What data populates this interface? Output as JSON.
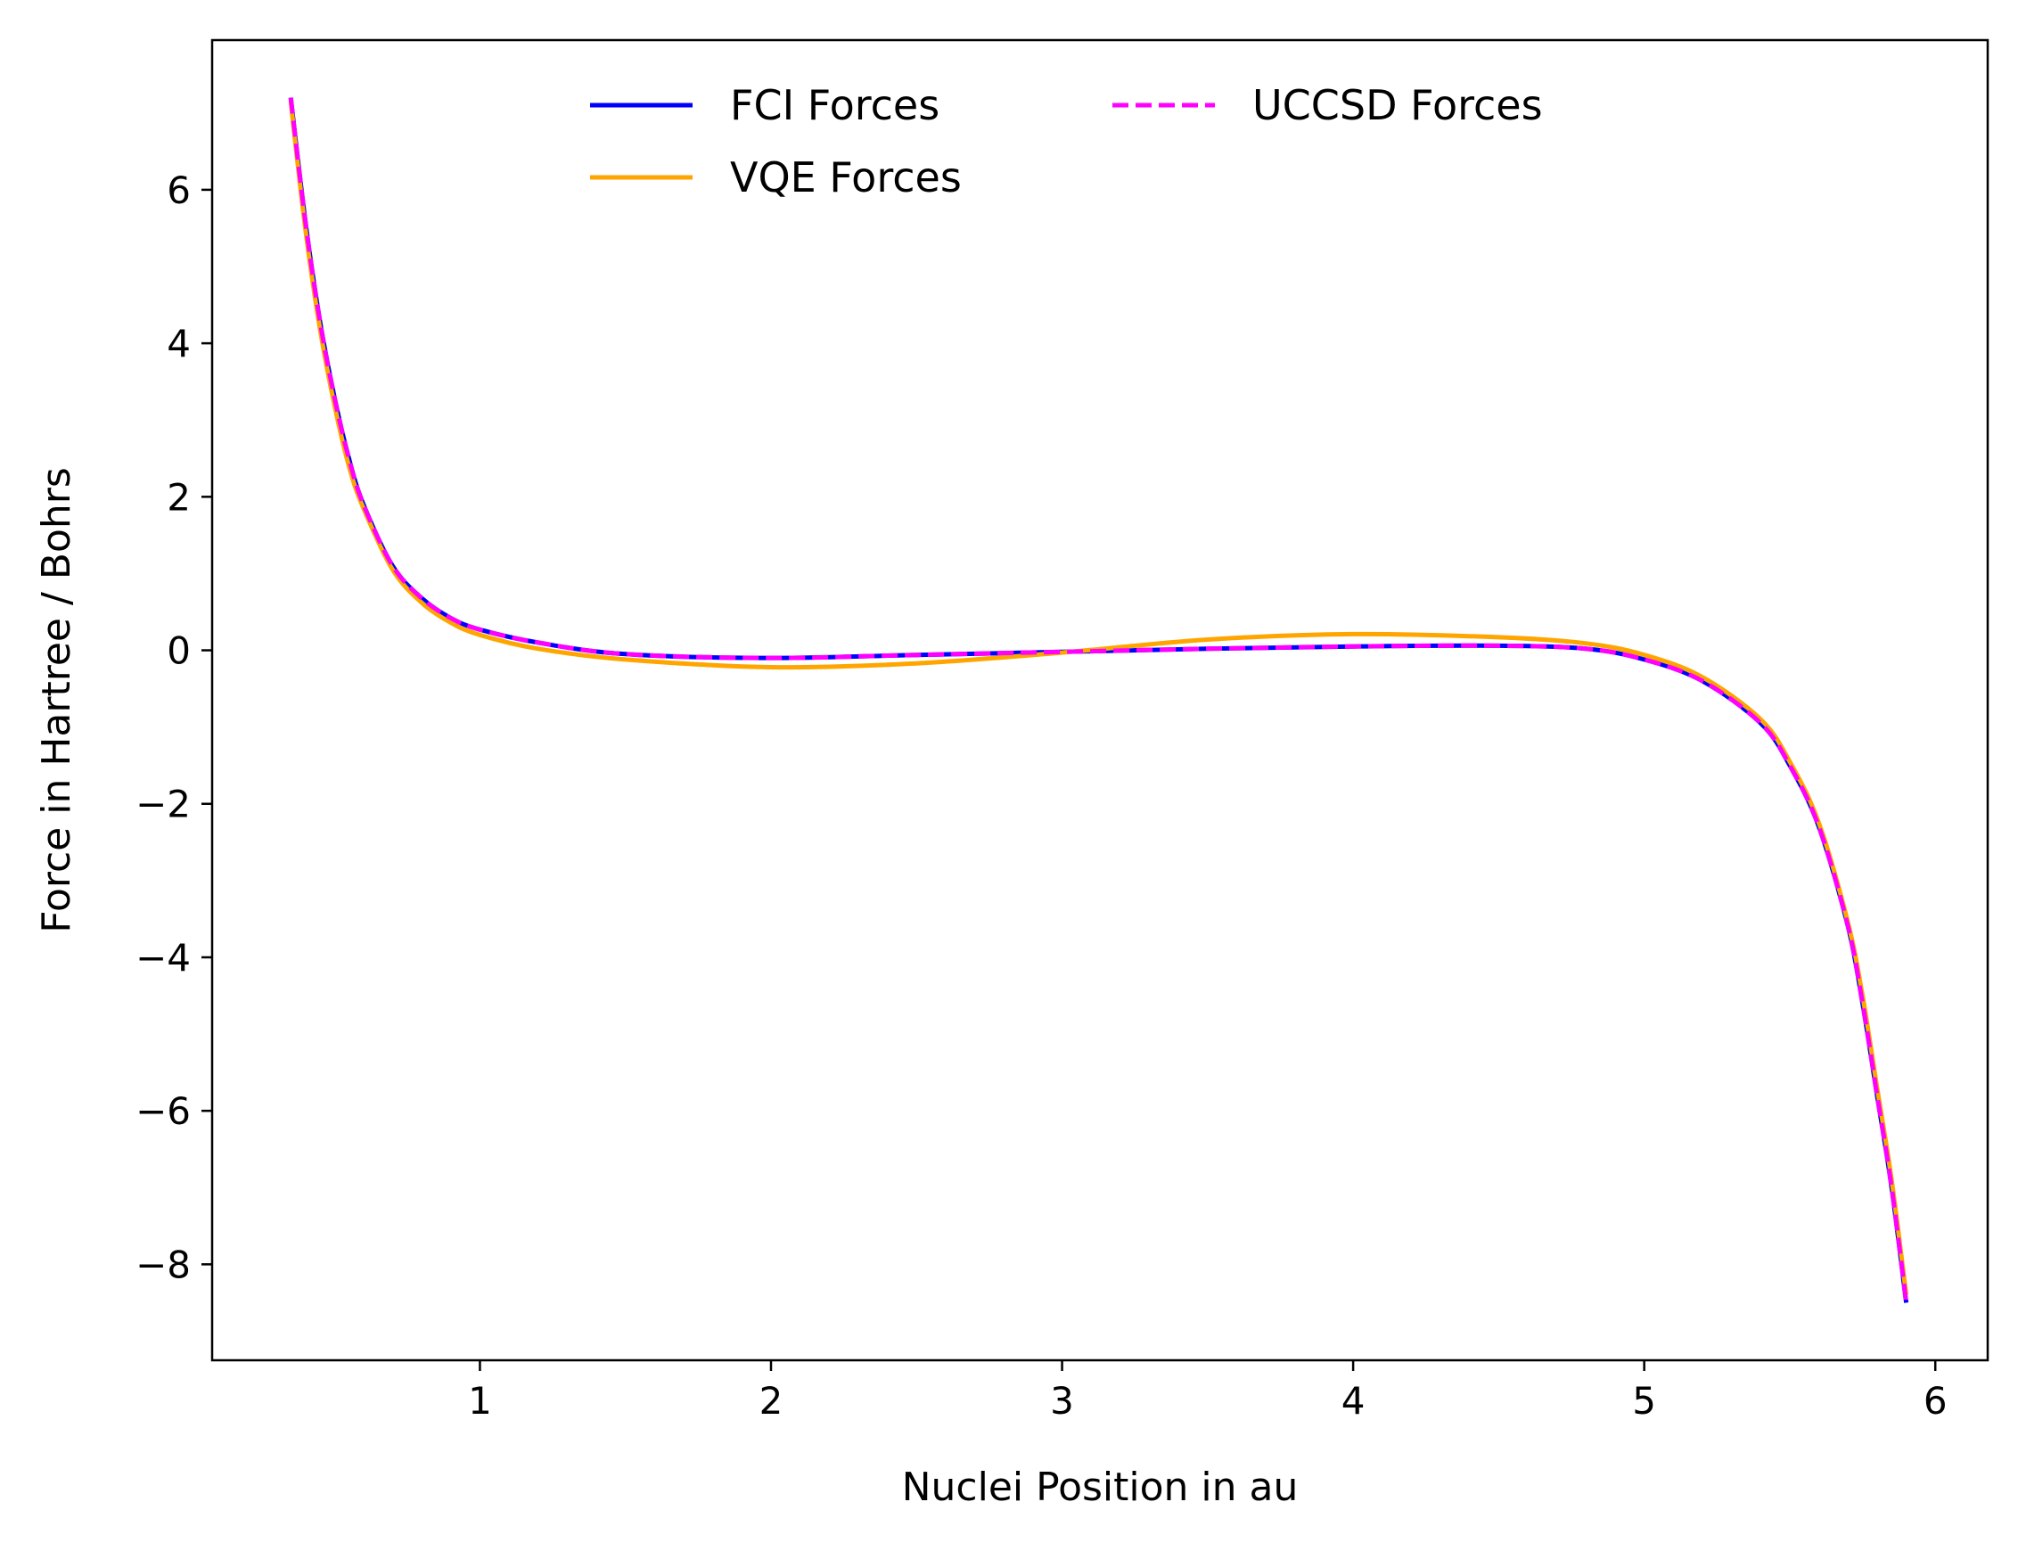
{
  "chart_data": {
    "type": "line",
    "title": "",
    "xlabel": "Nuclei Position in au",
    "ylabel": "Force in Hartree / Bohrs",
    "xlim": [
      0.08,
      6.18
    ],
    "ylim": [
      -9.25,
      7.95
    ],
    "xticks": [
      1,
      2,
      3,
      4,
      5,
      6
    ],
    "xtick_labels": [
      "1",
      "2",
      "3",
      "4",
      "5",
      "6"
    ],
    "yticks": [
      -8,
      -6,
      -4,
      -2,
      0,
      2,
      4,
      6
    ],
    "ytick_labels": [
      "−8",
      "−6",
      "−4",
      "−2",
      "0",
      "2",
      "4",
      "6"
    ],
    "grid": false,
    "legend_position": "top-center",
    "series": [
      {
        "name": "FCI Forces",
        "color": "#0000ff",
        "style": "solid",
        "x": [
          0.35,
          0.4,
          0.45,
          0.5,
          0.55,
          0.6,
          0.7,
          0.8,
          0.9,
          1.0,
          1.2,
          1.5,
          2.0,
          2.5,
          3.0,
          3.5,
          4.0,
          4.5,
          4.8,
          5.0,
          5.2,
          5.4,
          5.5,
          5.6,
          5.7,
          5.75,
          5.8,
          5.85,
          5.9
        ],
        "values": [
          7.2,
          5.6,
          4.3,
          3.3,
          2.5,
          1.9,
          1.1,
          0.68,
          0.42,
          0.27,
          0.1,
          -0.05,
          -0.1,
          -0.06,
          -0.02,
          0.02,
          0.05,
          0.06,
          0.02,
          -0.12,
          -0.4,
          -0.95,
          -1.5,
          -2.3,
          -3.6,
          -4.6,
          -5.8,
          -7.0,
          -8.5
        ]
      },
      {
        "name": "VQE Forces",
        "color": "#ffa500",
        "style": "solid",
        "x": [
          0.35,
          0.4,
          0.45,
          0.5,
          0.55,
          0.6,
          0.7,
          0.8,
          0.9,
          1.0,
          1.2,
          1.5,
          2.0,
          2.5,
          3.0,
          3.5,
          4.0,
          4.5,
          4.8,
          5.0,
          5.2,
          5.4,
          5.5,
          5.6,
          5.7,
          5.75,
          5.8,
          5.85,
          5.9
        ],
        "values": [
          7.15,
          5.5,
          4.2,
          3.2,
          2.4,
          1.85,
          1.05,
          0.62,
          0.36,
          0.2,
          0.02,
          -0.12,
          -0.22,
          -0.17,
          -0.03,
          0.14,
          0.21,
          0.17,
          0.09,
          -0.06,
          -0.35,
          -0.9,
          -1.45,
          -2.25,
          -3.55,
          -4.5,
          -5.7,
          -6.9,
          -8.4
        ]
      },
      {
        "name": "UCCSD Forces",
        "color": "#ff00ff",
        "style": "dashed",
        "x": [
          0.35,
          0.4,
          0.45,
          0.5,
          0.55,
          0.6,
          0.7,
          0.8,
          0.9,
          1.0,
          1.2,
          1.5,
          2.0,
          2.5,
          3.0,
          3.5,
          4.0,
          4.5,
          4.8,
          5.0,
          5.2,
          5.4,
          5.5,
          5.6,
          5.7,
          5.75,
          5.8,
          5.85,
          5.9
        ],
        "values": [
          7.2,
          5.6,
          4.3,
          3.3,
          2.5,
          1.9,
          1.1,
          0.68,
          0.42,
          0.27,
          0.1,
          -0.05,
          -0.1,
          -0.06,
          -0.02,
          0.02,
          0.05,
          0.06,
          0.02,
          -0.12,
          -0.4,
          -0.95,
          -1.5,
          -2.3,
          -3.6,
          -4.6,
          -5.8,
          -7.0,
          -8.5
        ]
      }
    ]
  }
}
